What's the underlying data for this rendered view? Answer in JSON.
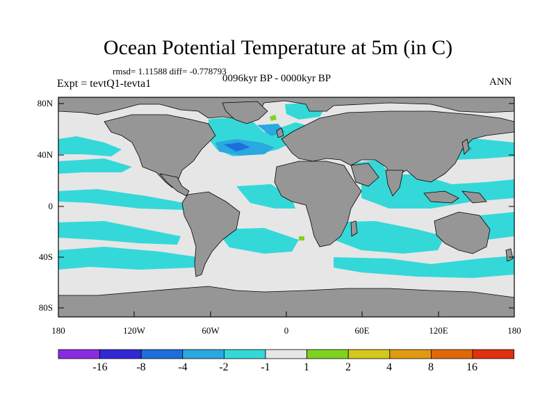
{
  "title": "Ocean Potential Temperature at 5m (in C)",
  "stats": "rmsd= 1.11588 diff= -0.778793",
  "expt": "Expt = tevtQ1-tevta1",
  "period": "0096kyr BP - 0000kyr BP",
  "season": "ANN",
  "lat_labels": [
    "80N",
    "40N",
    "0",
    "40S",
    "80S"
  ],
  "lon_labels": [
    "180",
    "120W",
    "60W",
    "0",
    "60E",
    "120E",
    "180"
  ],
  "colorbar": {
    "labels": [
      "-16",
      "-8",
      "-4",
      "-2",
      "-1",
      "1",
      "2",
      "4",
      "8",
      "16"
    ],
    "colors": [
      "#8a2be2",
      "#3228d4",
      "#1d6fdc",
      "#2aa8e0",
      "#35d8d8",
      "#e6e6e6",
      "#7ed321",
      "#d4c81e",
      "#e09a10",
      "#e0680a",
      "#e03010"
    ]
  },
  "colors": {
    "land": "#969696",
    "ocean_neutral": "#e6e6e6",
    "cool_light": "#35d8d8",
    "cool_mid": "#2aa8e0",
    "cool_dark": "#1d6fdc",
    "warm_light": "#7ed321"
  }
}
